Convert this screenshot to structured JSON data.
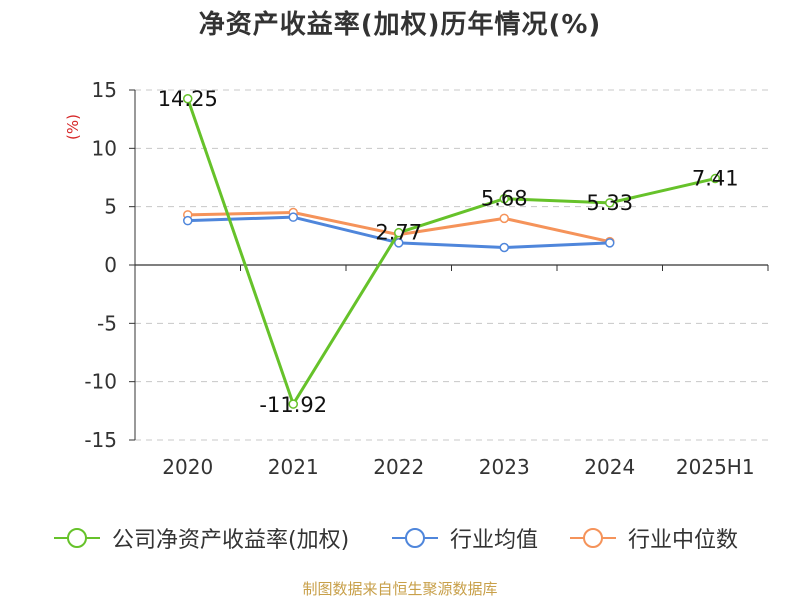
{
  "title": "净资产收益率(加权)历年情况(%)",
  "footer": "制图数据来自恒生聚源数据库",
  "colors": {
    "company": "#66c22a",
    "industry_avg": "#4f86db",
    "industry_median": "#f5935a"
  },
  "chart_data": {
    "type": "line",
    "title": "净资产收益率(加权)历年情况(%)",
    "ylabel": "(%)",
    "xlabel": "",
    "categories": [
      "2020",
      "2021",
      "2022",
      "2023",
      "2024",
      "2025H1"
    ],
    "y_ticks": [
      "15",
      "10",
      "5",
      "0",
      "-5",
      "-10",
      "-15"
    ],
    "ylim": [
      -15,
      15
    ],
    "grid": true,
    "legend_position": "bottom",
    "series": [
      {
        "name": "公司净资产收益率(加权)",
        "color": "#66c22a",
        "values": [
          14.25,
          -11.92,
          2.77,
          5.68,
          5.33,
          7.41
        ],
        "data_labels": [
          "14.25",
          "-11.92",
          "2.77",
          "5.68",
          "5.33",
          "7.41"
        ]
      },
      {
        "name": "行业均值",
        "color": "#4f86db",
        "values": [
          3.8,
          4.1,
          1.9,
          1.5,
          1.9,
          null
        ]
      },
      {
        "name": "行业中位数",
        "color": "#f5935a",
        "values": [
          4.3,
          4.5,
          2.6,
          4.0,
          2.0,
          null
        ]
      }
    ]
  }
}
